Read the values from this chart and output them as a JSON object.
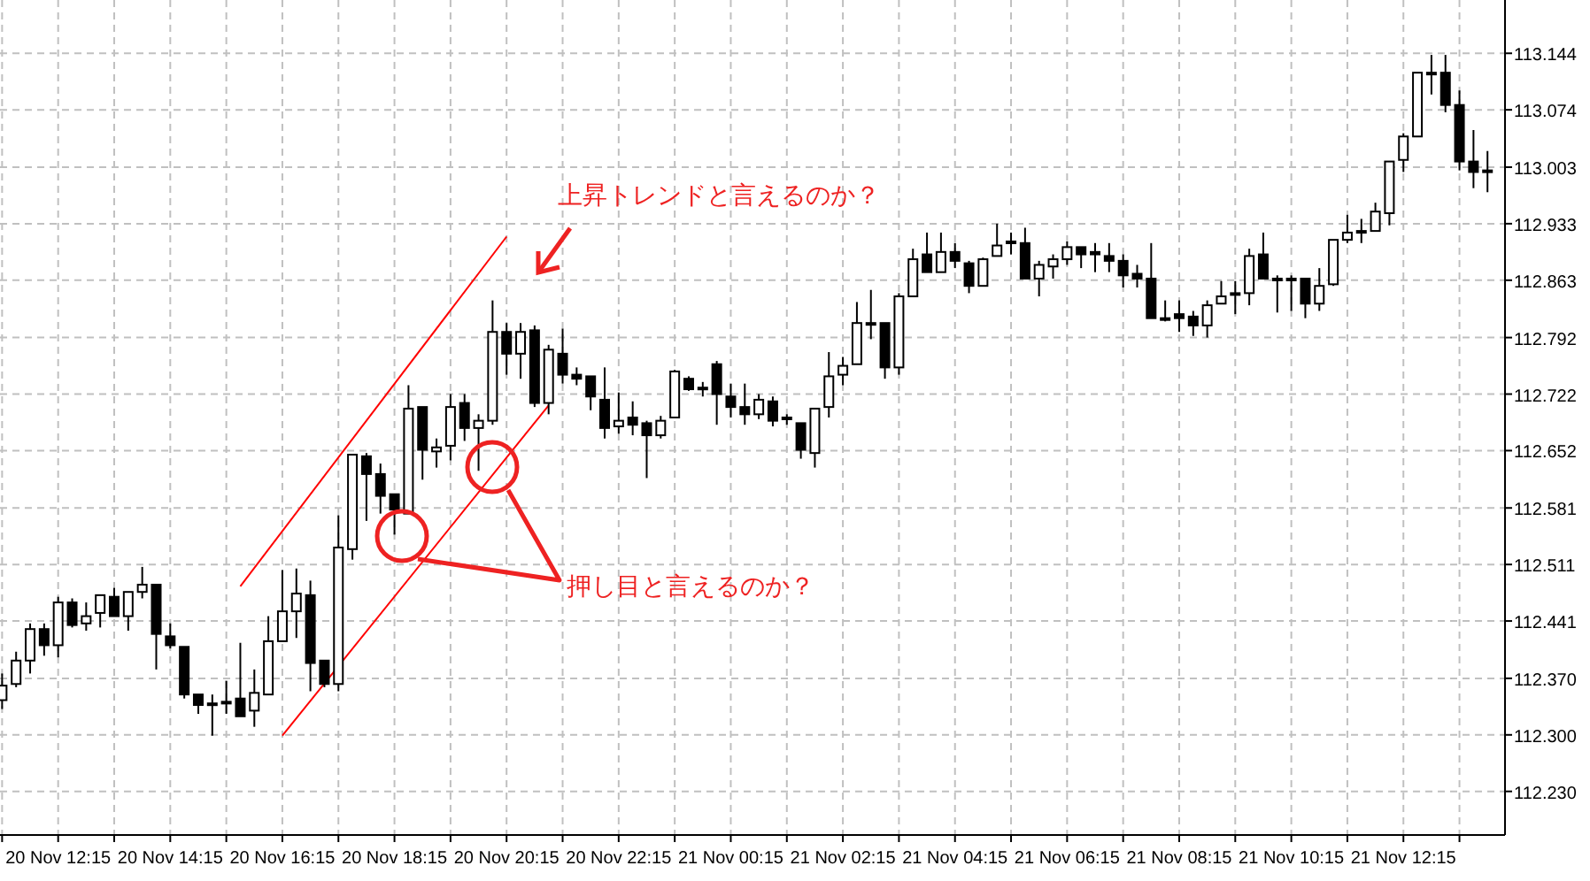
{
  "chart_data": {
    "type": "candlestick",
    "categories": [
      null,
      null,
      null,
      null,
      "20 Nov 12:15",
      null,
      null,
      null,
      null,
      null,
      null,
      null,
      "20 Nov 14:15",
      null,
      null,
      null,
      null,
      null,
      null,
      null,
      "20 Nov 16:15",
      null,
      null,
      null,
      null,
      null,
      null,
      null,
      "20 Nov 18:15",
      null,
      null,
      null,
      null,
      null,
      null,
      null,
      "20 Nov 20:15",
      null,
      null,
      null,
      null,
      null,
      null,
      null,
      "20 Nov 22:15",
      null,
      null,
      null,
      null,
      null,
      null,
      null,
      "21 Nov 00:15",
      null,
      null,
      null,
      null,
      null,
      null,
      null,
      "21 Nov 02:15",
      null,
      null,
      null,
      null,
      null,
      null,
      null,
      "21 Nov 04:15",
      null,
      null,
      null,
      null,
      null,
      null,
      null,
      "21 Nov 06:15",
      null,
      null,
      null,
      null,
      null,
      null,
      null,
      "21 Nov 08:15",
      null,
      null,
      null,
      null,
      null,
      null,
      null,
      "21 Nov 10:15",
      null,
      null,
      null,
      null,
      null,
      null,
      null,
      "21 Nov 12:15",
      null,
      null,
      null,
      null,
      null,
      null
    ],
    "ohlc": [
      [
        112.343,
        112.376,
        112.332,
        112.361
      ],
      [
        112.363,
        112.403,
        112.359,
        112.392
      ],
      [
        112.392,
        112.438,
        112.376,
        112.431
      ],
      [
        112.431,
        112.438,
        112.398,
        112.411
      ],
      [
        112.411,
        112.471,
        112.396,
        112.464
      ],
      [
        112.464,
        112.469,
        112.433,
        112.436
      ],
      [
        112.438,
        112.464,
        112.429,
        112.447
      ],
      [
        112.451,
        112.473,
        112.433,
        112.473
      ],
      [
        112.471,
        112.482,
        112.447,
        112.447
      ],
      [
        112.447,
        112.477,
        112.429,
        112.477
      ],
      [
        112.477,
        112.508,
        112.469,
        112.486
      ],
      [
        112.486,
        112.486,
        112.381,
        112.425
      ],
      [
        112.422,
        112.438,
        112.407,
        112.411
      ],
      [
        112.409,
        112.409,
        112.345,
        112.35
      ],
      [
        112.35,
        112.35,
        112.326,
        112.337
      ],
      [
        112.339,
        112.35,
        112.299,
        112.339
      ],
      [
        112.341,
        112.367,
        112.326,
        112.341
      ],
      [
        112.345,
        112.414,
        112.323,
        112.323
      ],
      [
        112.33,
        112.381,
        112.31,
        112.352
      ],
      [
        112.35,
        112.447,
        112.35,
        112.416
      ],
      [
        112.416,
        112.504,
        112.416,
        112.453
      ],
      [
        112.453,
        112.506,
        112.42,
        112.475
      ],
      [
        112.473,
        112.491,
        112.354,
        112.389
      ],
      [
        112.392,
        112.392,
        112.359,
        112.363
      ],
      [
        112.363,
        112.572,
        112.354,
        112.532
      ],
      [
        112.53,
        112.647,
        112.517,
        112.647
      ],
      [
        112.645,
        112.649,
        112.565,
        112.623
      ],
      [
        112.623,
        112.636,
        112.574,
        112.596
      ],
      [
        112.598,
        112.598,
        112.548,
        112.579
      ],
      [
        112.574,
        112.733,
        112.574,
        112.704
      ],
      [
        112.706,
        112.706,
        112.616,
        112.653
      ],
      [
        112.651,
        112.667,
        112.631,
        112.656
      ],
      [
        112.658,
        112.722,
        112.64,
        112.706
      ],
      [
        112.711,
        112.722,
        112.664,
        112.68
      ],
      [
        112.68,
        112.697,
        112.627,
        112.689
      ],
      [
        112.689,
        112.838,
        112.684,
        112.799
      ],
      [
        112.799,
        112.81,
        112.746,
        112.772
      ],
      [
        112.772,
        112.81,
        112.741,
        112.799
      ],
      [
        112.801,
        112.807,
        112.706,
        112.711
      ],
      [
        112.711,
        112.783,
        112.697,
        112.777
      ],
      [
        112.772,
        112.803,
        112.735,
        112.746
      ],
      [
        112.746,
        112.755,
        112.733,
        112.741
      ],
      [
        112.744,
        112.744,
        112.702,
        112.719
      ],
      [
        112.715,
        112.755,
        112.667,
        112.68
      ],
      [
        112.682,
        112.724,
        112.673,
        112.689
      ],
      [
        112.693,
        112.713,
        112.671,
        112.684
      ],
      [
        112.686,
        112.689,
        112.618,
        112.671
      ],
      [
        112.671,
        112.695,
        112.667,
        112.689
      ],
      [
        112.693,
        112.752,
        112.693,
        112.75
      ],
      [
        112.741,
        112.744,
        112.726,
        112.728
      ],
      [
        112.73,
        112.737,
        112.719,
        112.728
      ],
      [
        112.759,
        112.763,
        112.684,
        112.722
      ],
      [
        112.719,
        112.735,
        112.693,
        112.706
      ],
      [
        112.706,
        112.735,
        112.684,
        112.697
      ],
      [
        112.697,
        112.722,
        112.691,
        112.715
      ],
      [
        112.713,
        112.719,
        112.682,
        112.689
      ],
      [
        112.693,
        112.697,
        112.684,
        112.693
      ],
      [
        112.686,
        112.686,
        112.642,
        112.653
      ],
      [
        112.649,
        112.704,
        112.631,
        112.704
      ],
      [
        112.706,
        112.774,
        112.693,
        112.744
      ],
      [
        112.746,
        112.768,
        112.733,
        112.757
      ],
      [
        112.759,
        112.836,
        112.759,
        112.81
      ],
      [
        112.81,
        112.851,
        112.79,
        112.81
      ],
      [
        112.81,
        112.81,
        112.741,
        112.755
      ],
      [
        112.755,
        112.847,
        112.746,
        112.843
      ],
      [
        112.843,
        112.902,
        112.843,
        112.889
      ],
      [
        112.895,
        112.922,
        112.873,
        112.873
      ],
      [
        112.873,
        112.922,
        112.873,
        112.898
      ],
      [
        112.898,
        112.909,
        112.878,
        112.887
      ],
      [
        112.884,
        112.887,
        112.847,
        112.856
      ],
      [
        112.856,
        112.891,
        112.856,
        112.889
      ],
      [
        112.893,
        112.933,
        112.893,
        112.906
      ],
      [
        112.911,
        112.922,
        112.895,
        112.911
      ],
      [
        112.909,
        112.928,
        112.865,
        112.865
      ],
      [
        112.865,
        112.887,
        112.843,
        112.882
      ],
      [
        112.88,
        112.895,
        112.865,
        112.889
      ],
      [
        112.889,
        112.911,
        112.882,
        112.904
      ],
      [
        112.904,
        112.904,
        112.878,
        112.895
      ],
      [
        112.898,
        112.909,
        112.873,
        112.895
      ],
      [
        112.893,
        112.909,
        112.873,
        112.887
      ],
      [
        112.887,
        112.895,
        112.854,
        112.869
      ],
      [
        112.871,
        112.882,
        112.854,
        112.865
      ],
      [
        112.865,
        112.909,
        112.816,
        112.816
      ],
      [
        112.816,
        112.838,
        112.812,
        112.816
      ],
      [
        112.821,
        112.838,
        112.799,
        112.816
      ],
      [
        112.818,
        112.825,
        112.794,
        112.807
      ],
      [
        112.807,
        112.838,
        112.792,
        112.832
      ],
      [
        112.834,
        112.862,
        112.834,
        112.843
      ],
      [
        112.847,
        112.862,
        112.821,
        112.847
      ],
      [
        112.847,
        112.902,
        112.832,
        112.893
      ],
      [
        112.895,
        112.922,
        112.865,
        112.865
      ],
      [
        112.865,
        112.869,
        112.823,
        112.865
      ],
      [
        112.865,
        112.869,
        112.825,
        112.865
      ],
      [
        112.865,
        112.865,
        112.816,
        112.834
      ],
      [
        112.834,
        112.878,
        112.825,
        112.856
      ],
      [
        112.858,
        112.913,
        112.856,
        112.913
      ],
      [
        112.913,
        112.944,
        112.909,
        112.922
      ],
      [
        112.924,
        112.939,
        112.909,
        112.924
      ],
      [
        112.924,
        112.959,
        112.924,
        112.948
      ],
      [
        112.946,
        113.01,
        112.931,
        113.01
      ],
      [
        113.012,
        113.045,
        112.997,
        113.041
      ],
      [
        113.041,
        113.12,
        113.041,
        113.12
      ],
      [
        113.12,
        113.142,
        113.093,
        113.12
      ],
      [
        113.12,
        113.142,
        113.071,
        113.08
      ],
      [
        113.08,
        113.098,
        112.999,
        113.01
      ],
      [
        113.01,
        113.049,
        112.977,
        112.997
      ],
      [
        112.999,
        113.023,
        112.972,
        112.999
      ]
    ],
    "series": [
      {
        "type": "line",
        "color": "#ff0000",
        "values": [
          null,
          null,
          null,
          null,
          null,
          null,
          null,
          null,
          null,
          null,
          null,
          null,
          null,
          null,
          null,
          null,
          null,
          null,
          null,
          null,
          112.299,
          null,
          null,
          null,
          null,
          null,
          null,
          null,
          null,
          null,
          null,
          null,
          null,
          null,
          null,
          null,
          null,
          null,
          null,
          112.708,
          null,
          null,
          null,
          null,
          null,
          null,
          null,
          null,
          null,
          null,
          null,
          null,
          null,
          null,
          null,
          null,
          null,
          null,
          null,
          null,
          null,
          null,
          null,
          null,
          null,
          null,
          null,
          null,
          null,
          null,
          null,
          null,
          null,
          null,
          null,
          null,
          null,
          null,
          null,
          null,
          null,
          null,
          null,
          null,
          null,
          null,
          null,
          null,
          null,
          null,
          null,
          null,
          null,
          null,
          null,
          null,
          null,
          null,
          null,
          null,
          null,
          null,
          null,
          null,
          null,
          null,
          null
        ]
      },
      {
        "type": "line",
        "color": "#ff0000",
        "values": [
          null,
          null,
          null,
          null,
          null,
          null,
          null,
          null,
          null,
          null,
          null,
          null,
          null,
          null,
          null,
          null,
          null,
          112.484,
          null,
          null,
          null,
          null,
          null,
          null,
          null,
          null,
          null,
          null,
          null,
          null,
          null,
          null,
          null,
          null,
          null,
          null,
          112.917,
          null,
          null,
          null,
          null,
          null,
          null,
          null,
          null,
          null,
          null,
          null,
          null,
          null,
          null,
          null,
          null,
          null,
          null,
          null,
          null,
          null,
          null,
          null,
          null,
          null,
          null,
          null,
          null,
          null,
          null,
          null,
          null,
          null,
          null,
          null,
          null,
          null,
          null,
          null,
          null,
          null,
          null,
          null,
          null,
          null,
          null,
          null,
          null,
          null,
          null,
          null,
          null,
          null,
          null,
          null,
          null,
          null,
          null,
          null,
          null,
          null,
          null,
          null,
          null,
          null,
          null,
          null,
          null,
          null,
          null
        ]
      }
    ],
    "ylim": [
      112.176,
      113.21
    ],
    "yticks": [
      113.144,
      113.074,
      113.003,
      112.933,
      112.863,
      112.792,
      112.722,
      112.652,
      112.581,
      112.511,
      112.441,
      {
        "value": 112.37,
        "label": "112.370"
      },
      {
        "value": 112.3,
        "label": "112.300"
      },
      {
        "value": 112.23,
        "label": "112.230"
      }
    ],
    "grid": true,
    "annotations": [
      "上昇トレンドと言えるのか？",
      "押し目と言えるのか？"
    ]
  }
}
